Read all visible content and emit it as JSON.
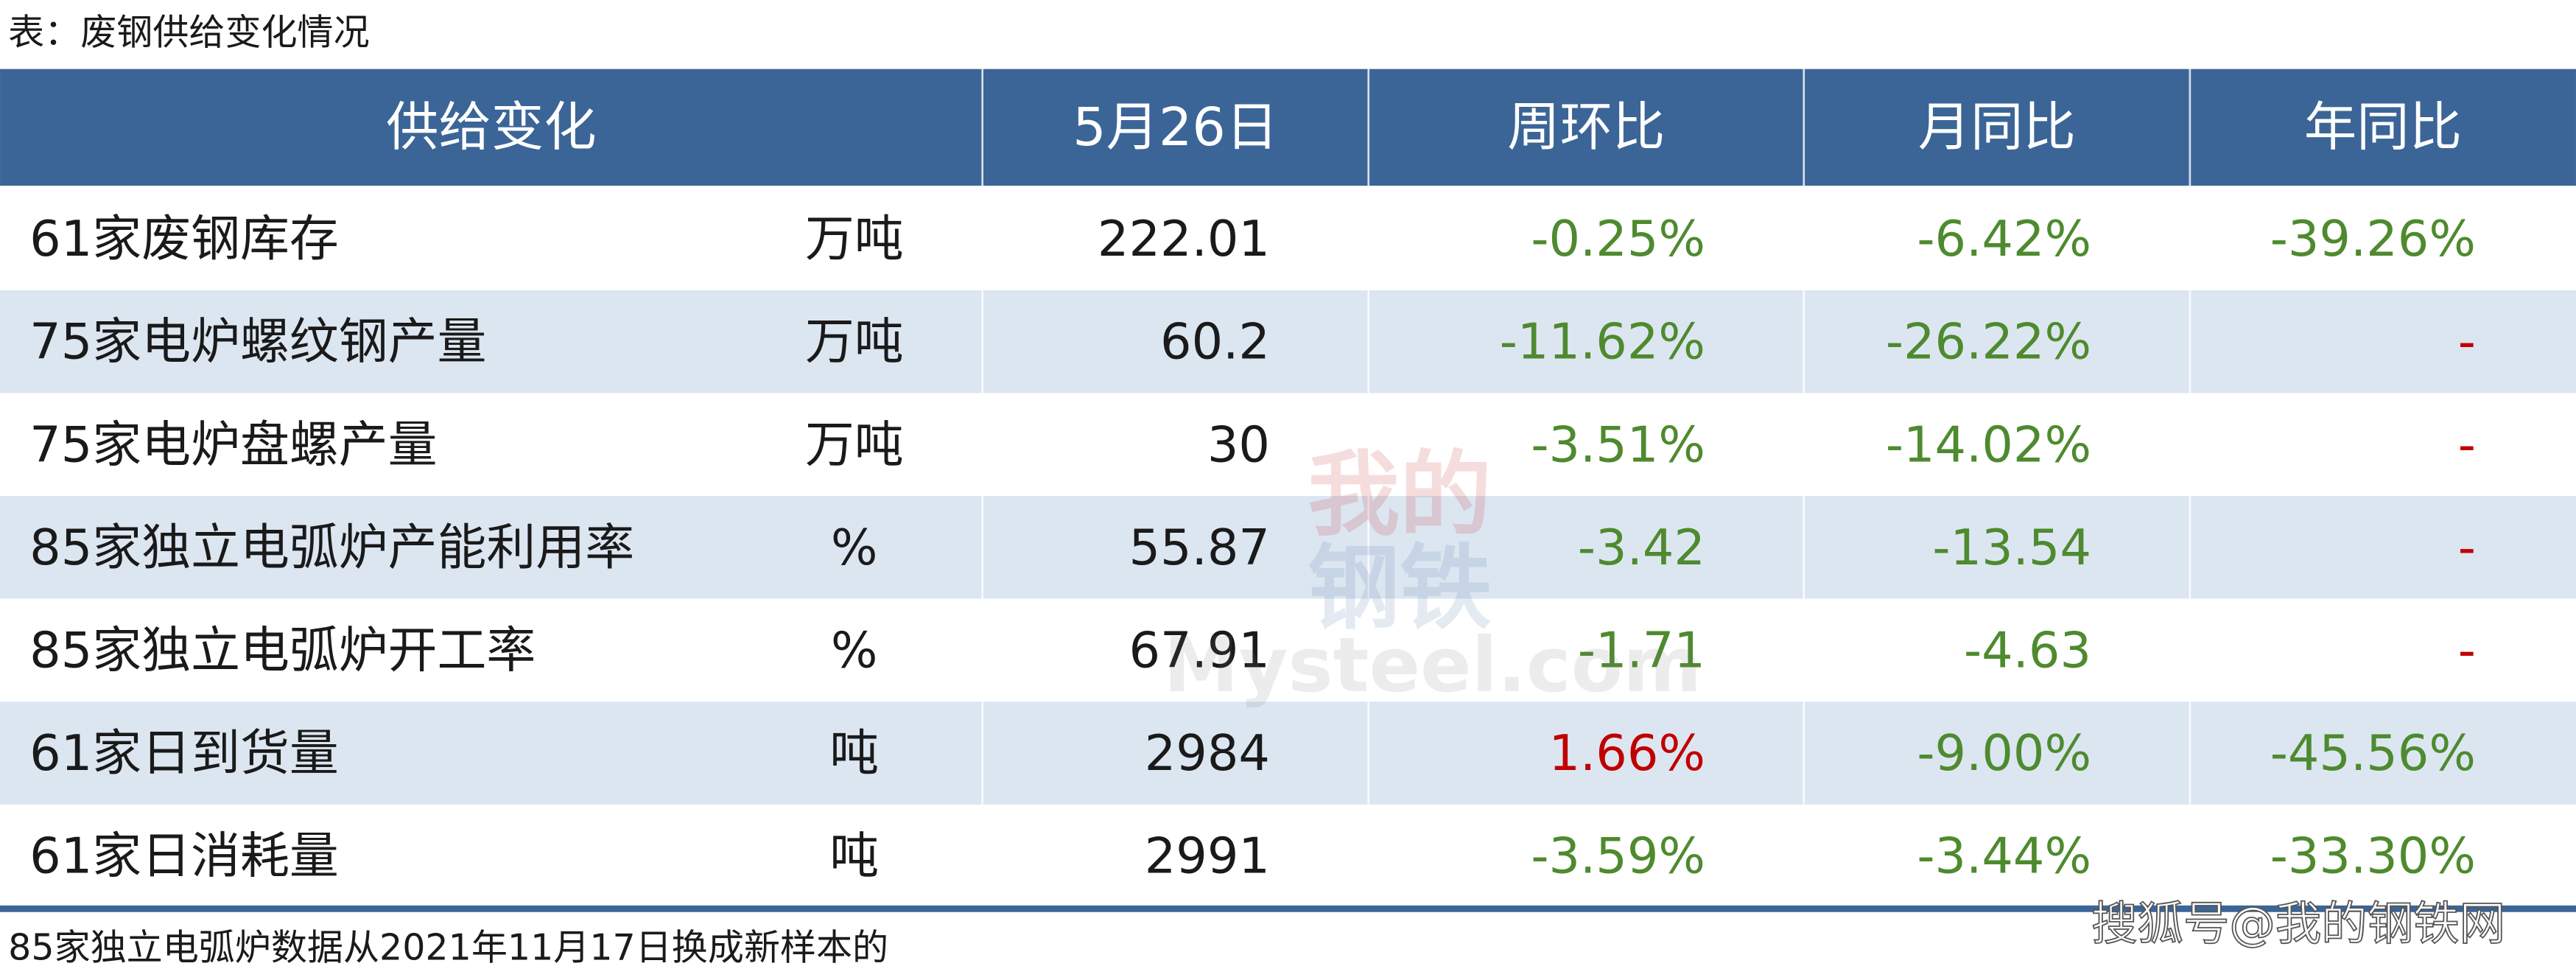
{
  "caption": "表：废钢供给变化情况",
  "table": {
    "header": [
      "供给变化",
      "5月26日",
      "周环比",
      "月同比",
      "年同比"
    ],
    "rows": [
      [
        "61家废钢库存",
        "万吨",
        "222.01",
        "-0.25%",
        "-6.42%",
        "-39.26%"
      ],
      [
        "75家电炉螺纹钢产量",
        "万吨",
        "60.2",
        "-11.62%",
        "-26.22%",
        "-"
      ],
      [
        "75家电炉盘螺产量",
        "万吨",
        "30",
        "-3.51%",
        "-14.02%",
        "-"
      ],
      [
        "85家独立电弧炉产能利用率",
        "%",
        "55.87",
        "-3.42",
        "-13.54",
        "-"
      ],
      [
        "85家独立电弧炉开工率",
        "%",
        "67.91",
        "-1.71",
        "-4.63",
        "-"
      ],
      [
        "61家日到货量",
        "吨",
        "2984",
        "1.66%",
        "-9.00%",
        "-45.56%"
      ],
      [
        "61家日消耗量",
        "吨",
        "2991",
        "-3.59%",
        "-3.44%",
        "-33.30%"
      ]
    ]
  },
  "footnote": "85家独立电弧炉数据从2021年11月17日换成新样本的",
  "watermark": {
    "logo_top": "我的",
    "logo_bottom": "钢铁",
    "logo_text": "Mysteel.com",
    "source": "搜狐号@我的钢铁网"
  }
}
